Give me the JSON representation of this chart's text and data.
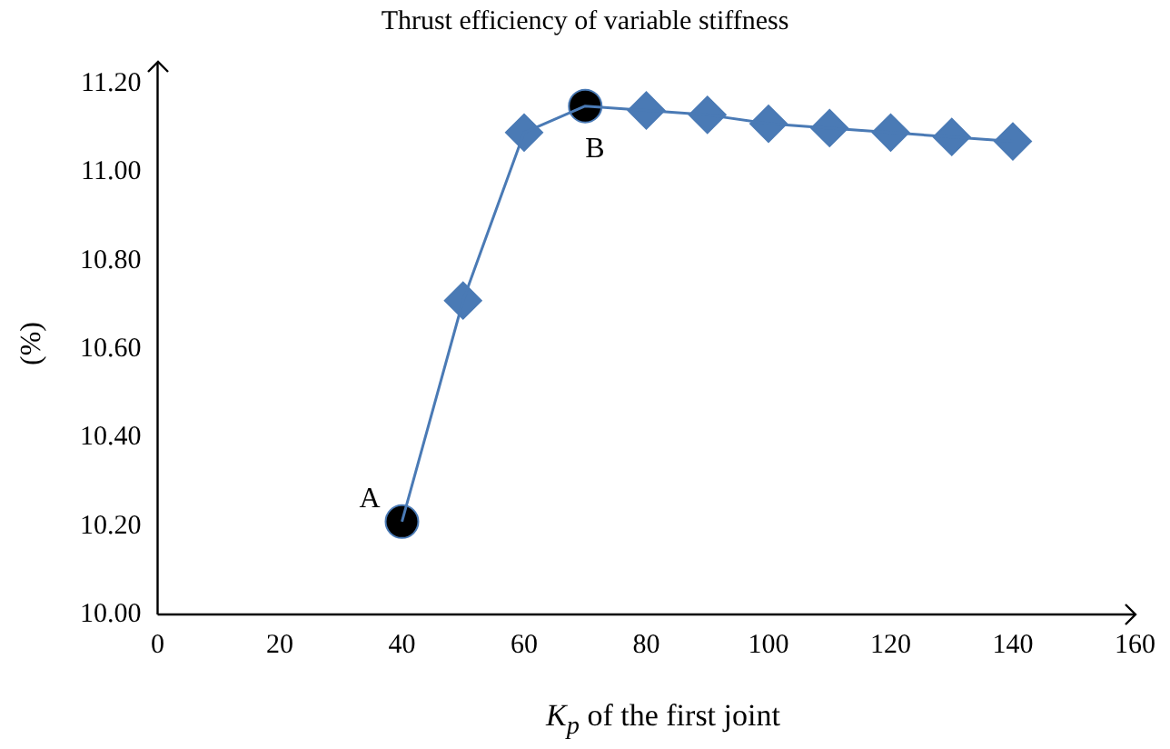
{
  "chart_data": {
    "type": "line",
    "title": "Thrust efficiency of variable stiffness",
    "xlabel": "K$_{p}$ of the first joint",
    "ylabel": "(%)",
    "series": [
      {
        "color": "#4a7ab5",
        "marker": "none",
        "x": [
          40,
          50,
          60,
          70,
          80,
          90,
          100,
          110,
          120,
          130,
          140
        ],
        "values": [
          10.21,
          10.71,
          11.09,
          11.15,
          11.14,
          11.13,
          11.11,
          11.1,
          11.09,
          11.08,
          11.07
        ]
      },
      {
        "type": "scatter",
        "color": "#4a7ab5",
        "marker": "diamond",
        "x": [
          50,
          60,
          80,
          90,
          100,
          110,
          120,
          130,
          140
        ],
        "values": [
          10.71,
          11.09,
          11.14,
          11.13,
          11.11,
          11.1,
          11.09,
          11.08,
          11.07
        ]
      },
      {
        "type": "scatter",
        "color": "#000000",
        "marker": "circle",
        "x": [
          40,
          70
        ],
        "values": [
          10.21,
          11.15
        ]
      }
    ],
    "annotations": [
      {
        "text": "A",
        "x": 40,
        "y": 10.21
      },
      {
        "text": "B",
        "x": 70,
        "y": 11.15
      }
    ],
    "xlim": [
      0,
      160
    ],
    "xticks": [
      0,
      20,
      40,
      60,
      80,
      100,
      120,
      140,
      160
    ],
    "ylim": [
      10,
      11.25
    ],
    "yticks": [
      {
        "value": 10,
        "label": "10.00"
      },
      {
        "value": 10.2,
        "label": "10.20"
      },
      {
        "value": 10.4,
        "label": "10.40"
      },
      {
        "value": 10.6,
        "label": "10.60"
      },
      {
        "value": 10.8,
        "label": "10.80"
      },
      {
        "value": 11,
        "label": "11.00"
      },
      {
        "value": 11.2,
        "label": "11.20"
      }
    ],
    "grid": false,
    "legend": false
  }
}
